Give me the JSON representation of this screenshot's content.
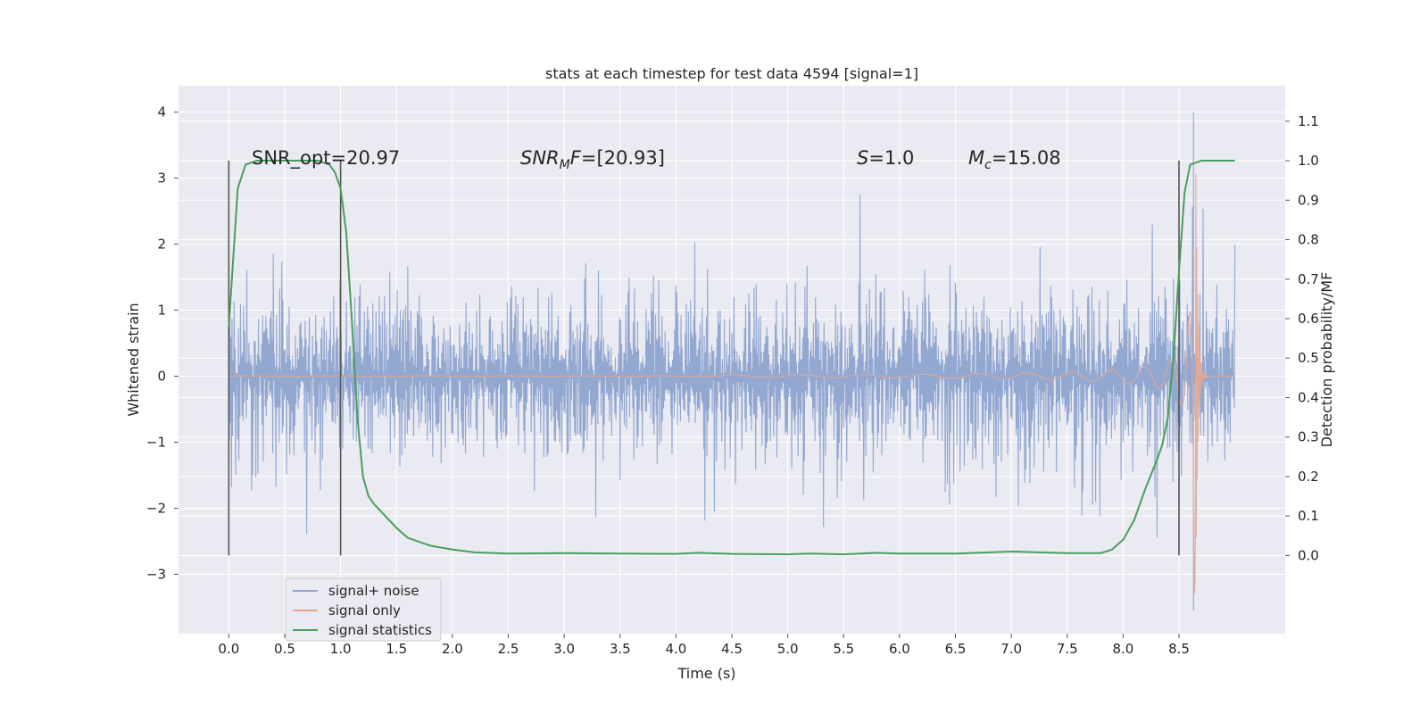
{
  "chart_data": {
    "type": "line",
    "title": "stats at each timestep for test data 4594 [signal=1]",
    "xlabel": "Time (s)",
    "ylabel": "Whitened strain",
    "y2label": "Detection probability/MF",
    "xlim": [
      -0.45,
      9.45
    ],
    "ylim": [
      -3.9,
      4.4
    ],
    "y2lim": [
      -0.198,
      1.19
    ],
    "x_ticks": [
      "0.0",
      "0.5",
      "1.0",
      "1.5",
      "2.0",
      "2.5",
      "3.0",
      "3.5",
      "4.0",
      "4.5",
      "5.0",
      "5.5",
      "6.0",
      "6.5",
      "7.0",
      "7.5",
      "8.0",
      "8.5"
    ],
    "y_ticks": [
      "4",
      "3",
      "2",
      "1",
      "0",
      "−1",
      "−2",
      "−3"
    ],
    "y2_ticks": [
      "1.1",
      "1.0",
      "0.9",
      "0.8",
      "0.7",
      "0.6",
      "0.5",
      "0.4",
      "0.3",
      "0.2",
      "0.1",
      "0.0"
    ],
    "grid": true,
    "legend_position": "lower-left",
    "annotations": [
      "SNR_opt=20.97",
      "[20.93]",
      "1.0",
      "15.08"
    ],
    "annotation_math_labels": [
      "SNR",
      "M",
      "F",
      "S",
      "M",
      "c"
    ],
    "series": [
      {
        "name": "signal+ noise",
        "color": "#8ea4cf",
        "x_range": [
          0.0,
          9.0
        ],
        "envelope": {
          "typical_abs": 1.4,
          "max": 4.0,
          "min": -3.55
        }
      },
      {
        "name": "signal only",
        "color": "#e5a68f",
        "x_range": [
          0.0,
          9.0
        ],
        "chirp": {
          "onset": 4.4,
          "merger": 8.65,
          "peak_amplitude": 3.3
        }
      },
      {
        "name": "signal statistics",
        "color": "#4a9e5c",
        "axis": "right",
        "x": [
          0.0,
          0.08,
          0.15,
          0.25,
          0.4,
          0.6,
          0.8,
          0.9,
          0.95,
          1.0,
          1.05,
          1.1,
          1.15,
          1.2,
          1.25,
          1.3,
          1.4,
          1.5,
          1.6,
          1.8,
          2.0,
          2.2,
          2.5,
          3.0,
          3.5,
          4.0,
          4.2,
          4.5,
          5.0,
          5.2,
          5.5,
          5.8,
          6.0,
          6.5,
          7.0,
          7.5,
          7.8,
          7.9,
          8.0,
          8.1,
          8.2,
          8.3,
          8.35,
          8.4,
          8.45,
          8.5,
          8.55,
          8.6,
          8.7,
          8.8,
          9.0
        ],
        "y": [
          0.58,
          0.93,
          0.99,
          1.0,
          1.0,
          1.0,
          1.0,
          0.99,
          0.97,
          0.93,
          0.82,
          0.6,
          0.35,
          0.2,
          0.15,
          0.13,
          0.1,
          0.07,
          0.045,
          0.025,
          0.015,
          0.008,
          0.005,
          0.006,
          0.005,
          0.004,
          0.007,
          0.004,
          0.003,
          0.005,
          0.003,
          0.007,
          0.005,
          0.005,
          0.01,
          0.006,
          0.006,
          0.015,
          0.04,
          0.09,
          0.17,
          0.24,
          0.28,
          0.35,
          0.5,
          0.72,
          0.92,
          0.99,
          1.0,
          1.0,
          1.0
        ]
      }
    ],
    "vertical_markers": [
      0.0,
      1.0,
      8.5
    ]
  }
}
